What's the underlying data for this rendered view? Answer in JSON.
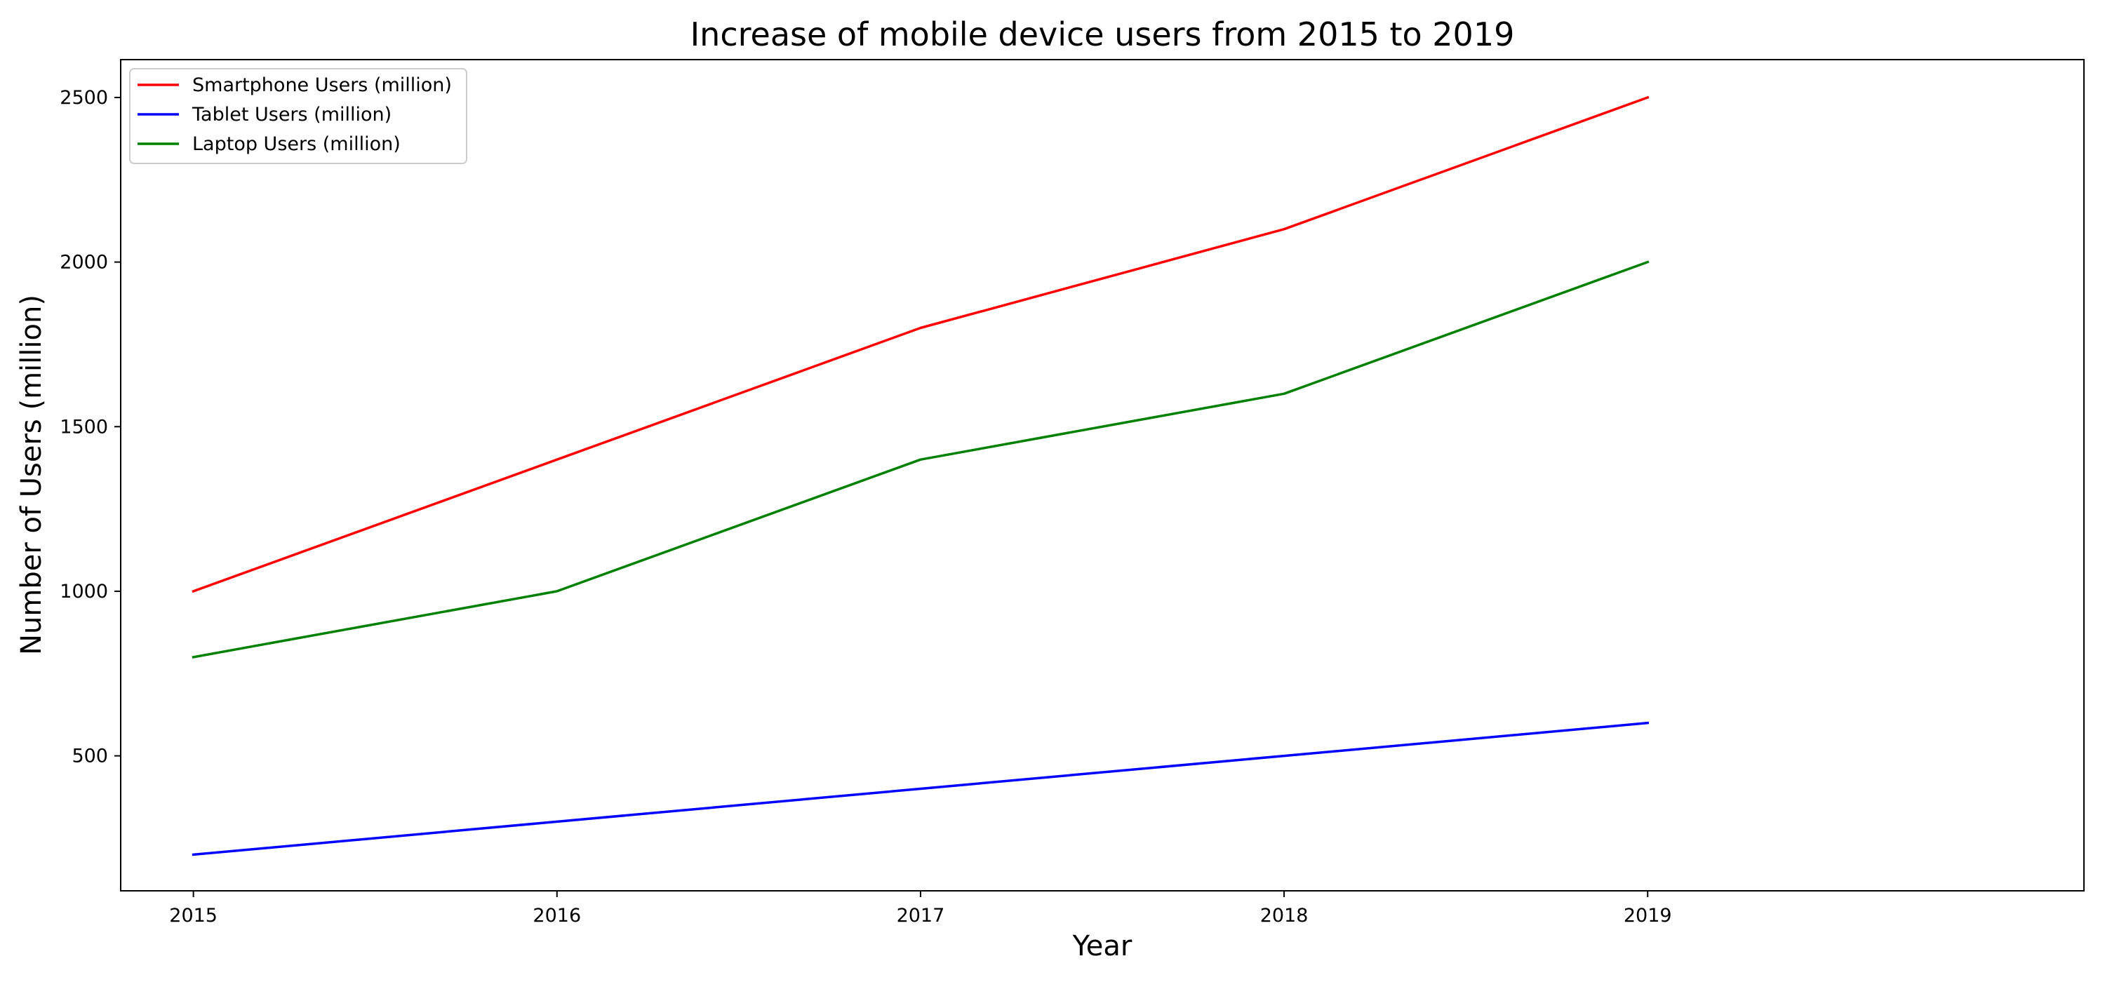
{
  "chart_data": {
    "type": "line",
    "title": "Increase of mobile device users from 2015 to 2019",
    "xlabel": "Year",
    "ylabel": "Number of Users (million)",
    "x": [
      "2015",
      "2016",
      "2017",
      "2018",
      "2019"
    ],
    "xlim": [
      2014.8,
      2020.2
    ],
    "ylim": [
      90,
      2615
    ],
    "yticks": [
      "500",
      "1000",
      "1500",
      "2000",
      "2500"
    ],
    "grid": false,
    "legend_position": "top-left",
    "series": [
      {
        "name": "Smartphone Users (million)",
        "color": "#ff0000",
        "values": [
          1000,
          1400,
          1800,
          2100,
          2500
        ]
      },
      {
        "name": "Tablet Users (million)",
        "color": "#0000ff",
        "values": [
          200,
          300,
          400,
          500,
          600
        ]
      },
      {
        "name": "Laptop Users (million)",
        "color": "#008000",
        "values": [
          800,
          1000,
          1400,
          1600,
          2000
        ]
      }
    ]
  }
}
